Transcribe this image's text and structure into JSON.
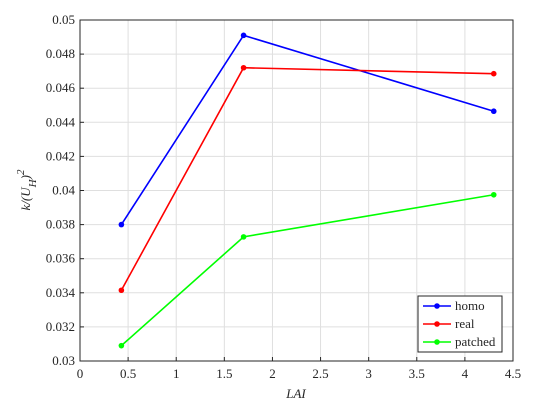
{
  "chart_data": {
    "type": "line",
    "xlabel": "LAI",
    "ylabel": "k/(U_H)^2",
    "x": [
      0.43,
      1.7,
      4.3
    ],
    "series": [
      {
        "name": "homo",
        "color": "#0000ff",
        "values": [
          0.038,
          0.0491,
          0.04465
        ]
      },
      {
        "name": "real",
        "color": "#ff0000",
        "values": [
          0.03415,
          0.0472,
          0.04685
        ]
      },
      {
        "name": "patched",
        "color": "#00ff00",
        "values": [
          0.0309,
          0.03728,
          0.03975
        ]
      }
    ],
    "xlim": [
      0,
      4.5
    ],
    "xticks": [
      0,
      0.5,
      1,
      1.5,
      2,
      2.5,
      3,
      3.5,
      4,
      4.5
    ],
    "ylim": [
      0.03,
      0.05
    ],
    "yticks": [
      0.03,
      0.032,
      0.034,
      0.036,
      0.038,
      0.04,
      0.042,
      0.044,
      0.046,
      0.048,
      0.05
    ],
    "grid": true,
    "legend": "lower right"
  }
}
